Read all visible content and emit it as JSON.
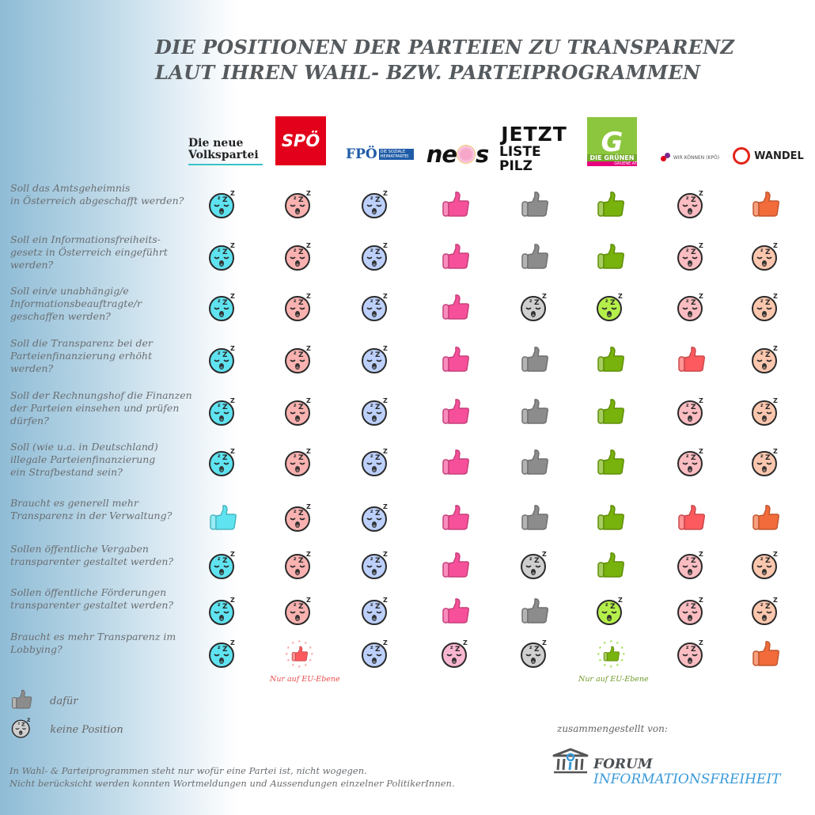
{
  "title": {
    "line1": "DIE POSITIONEN DER PARTEIEN ZU TRANSPARENZ",
    "line2": "LAUT IHREN WAHL- BZW. PARTEIPROGRAMMEN"
  },
  "parties": [
    {
      "id": "ovp",
      "name_line1": "Die neue",
      "name_line2": "Volkspartei",
      "color": "#5fe3f0"
    },
    {
      "id": "spo",
      "name": "SPÖ",
      "color": "#f9b2b0"
    },
    {
      "id": "fpo",
      "name": "FPÖ",
      "subtitle": "DIE SOZIALE HEIMATPARTEI",
      "color": "#bcd0fb"
    },
    {
      "id": "neos",
      "name_a": "ne",
      "name_b": "s",
      "color": "#f7509a"
    },
    {
      "id": "jetzt",
      "name_line1": "JETZT",
      "name_line2": "LISTE PILZ",
      "color": "#8c8c8c"
    },
    {
      "id": "gruene",
      "logo_letter": "G",
      "name": "DIE GRÜNEN",
      "url": "GRUENE.AT",
      "color": "#78b20c"
    },
    {
      "id": "kpo",
      "name": "WIR KÖNNEN (KPÖ)",
      "color": "#fc5a5e"
    },
    {
      "id": "wandel",
      "name": "WANDEL",
      "color": "#f26b3a"
    }
  ],
  "questions": [
    {
      "text": "Soll das Amtsgeheimnis\nin Österreich abgeschafft werden?",
      "positions": [
        "none",
        "none",
        "none",
        "yes",
        "yes",
        "yes",
        "none",
        "yes"
      ]
    },
    {
      "text": "Soll ein Informationsfreiheits-\ngesetz in Österreich eingeführt\nwerden?",
      "positions": [
        "none",
        "none",
        "none",
        "yes",
        "yes",
        "yes",
        "none",
        "none"
      ]
    },
    {
      "text": "Soll ein/e unabhängig/e\nInformationsbeauftragte/r\ngeschaffen werden?",
      "positions": [
        "none",
        "none",
        "none",
        "yes",
        "none",
        "none",
        "none",
        "none"
      ]
    },
    {
      "text": "Soll die Transparenz bei der\nParteienfinanzierung erhöht\nwerden?",
      "positions": [
        "none",
        "none",
        "none",
        "yes",
        "yes",
        "yes",
        "yes",
        "none"
      ]
    },
    {
      "text": "Soll der Rechnungshof die Finanzen\nder Parteien einsehen und prüfen\ndürfen?",
      "positions": [
        "none",
        "none",
        "none",
        "yes",
        "yes",
        "yes",
        "none",
        "none"
      ]
    },
    {
      "text": "Soll (wie u.a. in Deutschland)\nillegale Parteienfinanzierung\nein Strafbestand sein?",
      "positions": [
        "none",
        "none",
        "none",
        "yes",
        "yes",
        "yes",
        "none",
        "none"
      ]
    },
    {
      "text": "Braucht es generell mehr\nTransparenz in der Verwaltung?",
      "positions": [
        "yes",
        "none",
        "none",
        "yes",
        "yes",
        "yes",
        "yes",
        "yes"
      ]
    },
    {
      "text": "Sollen öffentliche Vergaben\ntransparenter gestaltet werden?",
      "positions": [
        "none",
        "none",
        "none",
        "yes",
        "none",
        "yes",
        "none",
        "none"
      ]
    },
    {
      "text": "Sollen öffentliche Förderungen\ntransparenter gestaltet werden?",
      "positions": [
        "none",
        "none",
        "none",
        "yes",
        "yes",
        "none",
        "none",
        "none"
      ]
    },
    {
      "text": "Braucht es mehr Transparenz im\nLobbying?",
      "positions": [
        "none",
        "eu",
        "none",
        "none",
        "none",
        "eu",
        "none",
        "yes"
      ]
    }
  ],
  "notes": {
    "spo_eu": "Nur auf EU-Ebene",
    "gruene_eu": "Nur auf EU-Ebene"
  },
  "note_colors": {
    "spo": "#e84a4a",
    "gruene": "#6f9a2b"
  },
  "legend": {
    "yes_label": "dafür",
    "none_label": "keine Position",
    "yes_icon": "thumbs-up-icon",
    "none_icon": "sleeping-face-icon"
  },
  "footnote": "In Wahl- & Parteiprogrammen steht nur wofür eine Partei ist, nicht wogegen.\nNicht berücksicht werden konnten Wortmeldungen und Aussendungen einzelner PolitikerInnen.",
  "credit": {
    "label": "zusammengestellt von:",
    "org_line1": "FORUM",
    "org_line2": "INFORMATIONSFREIHEIT"
  }
}
